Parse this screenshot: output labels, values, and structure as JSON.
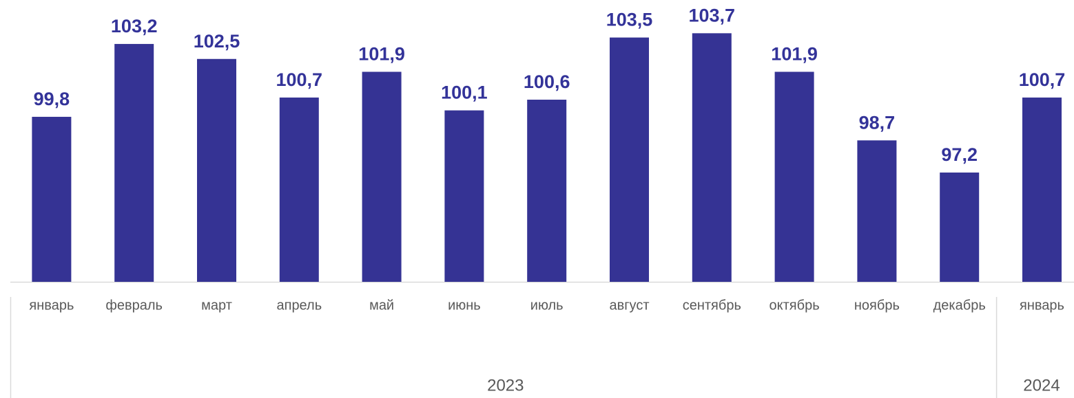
{
  "chart_data": {
    "type": "bar",
    "categories": [
      "январь",
      "февраль",
      "март",
      "апрель",
      "май",
      "июнь",
      "июль",
      "август",
      "сентябрь",
      "октябрь",
      "ноябрь",
      "декабрь",
      "январь"
    ],
    "values": [
      99.8,
      103.2,
      102.5,
      100.7,
      101.9,
      100.1,
      100.6,
      103.5,
      103.7,
      101.9,
      98.7,
      97.2,
      100.7
    ],
    "value_labels": [
      "99,8",
      "103,2",
      "102,5",
      "100,7",
      "101,9",
      "100,1",
      "100,6",
      "103,5",
      "103,7",
      "101,9",
      "98,7",
      "97,2",
      "100,7"
    ],
    "color": "#353394",
    "ylim": [
      92.1,
      104
    ],
    "groups": [
      {
        "label": "2023",
        "count": 12
      },
      {
        "label": "2024",
        "count": 1
      }
    ]
  }
}
